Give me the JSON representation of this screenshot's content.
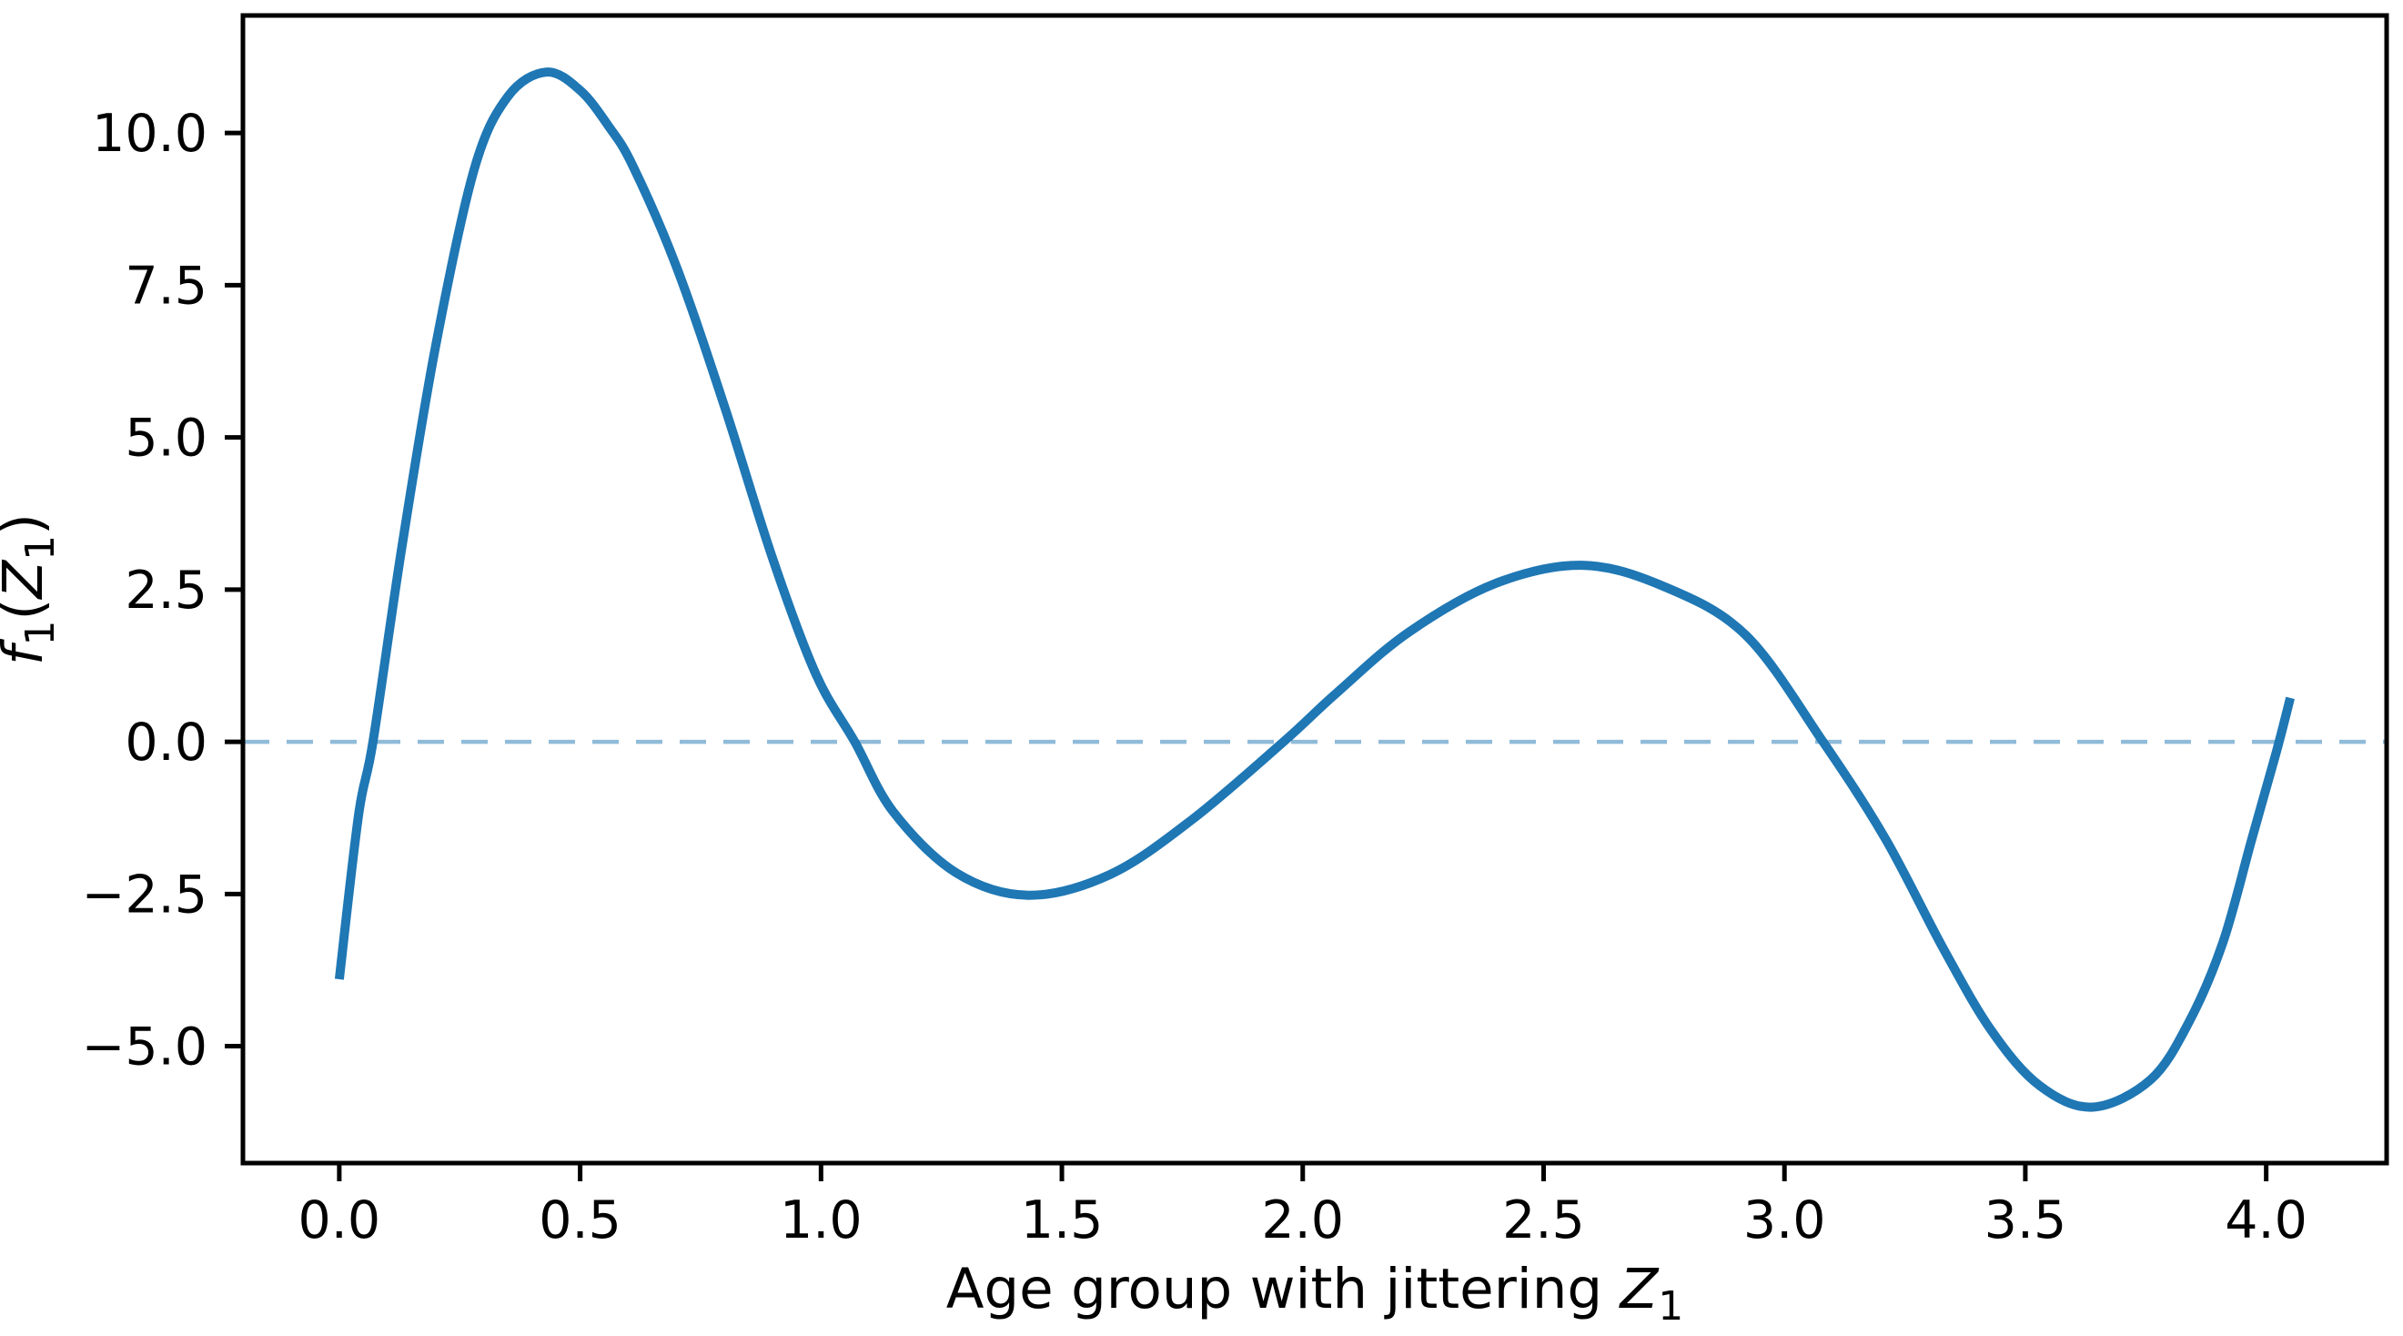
{
  "figure": {
    "background": "#ffffff",
    "text_color": "#000000",
    "spine_color": "#000000"
  },
  "chart_data": {
    "type": "line",
    "title": "",
    "xlabel_plain": "Age group with jittering Z1",
    "xlabel_parts": [
      {
        "t": "Age group with jittering ",
        "style": "normal"
      },
      {
        "t": "Z",
        "style": "italic"
      },
      {
        "t": "1",
        "style": "sub"
      }
    ],
    "ylabel_plain": "f1(Z1)",
    "ylabel_parts": [
      {
        "t": "f",
        "style": "italic"
      },
      {
        "t": "1",
        "style": "sub"
      },
      {
        "t": "(",
        "style": "normal"
      },
      {
        "t": "Z",
        "style": "italic"
      },
      {
        "t": "1",
        "style": "sub"
      },
      {
        "t": ")",
        "style": "normal"
      }
    ],
    "xlim": [
      -0.2,
      4.25
    ],
    "ylim": [
      -6.92,
      11.93
    ],
    "xticks": [
      0.0,
      0.5,
      1.0,
      1.5,
      2.0,
      2.5,
      3.0,
      3.5,
      4.0
    ],
    "xtick_labels": [
      "0.0",
      "0.5",
      "1.0",
      "1.5",
      "2.0",
      "2.5",
      "3.0",
      "3.5",
      "4.0"
    ],
    "yticks": [
      -5.0,
      -2.5,
      0.0,
      2.5,
      5.0,
      7.5,
      10.0
    ],
    "ytick_labels": [
      "−5.0",
      "−2.5",
      "0.0",
      "2.5",
      "5.0",
      "7.5",
      "10.0"
    ],
    "grid": false,
    "legend": null,
    "series": [
      {
        "name": "f1-spline",
        "color": "#1f77b4",
        "linewidth": 10,
        "linestyle": "solid",
        "points": [
          [
            0.0,
            -3.9
          ],
          [
            0.04,
            -1.2
          ],
          [
            0.07,
            0.0
          ],
          [
            0.13,
            3.2
          ],
          [
            0.2,
            6.5
          ],
          [
            0.28,
            9.4
          ],
          [
            0.35,
            10.6
          ],
          [
            0.43,
            11.0
          ],
          [
            0.5,
            10.7
          ],
          [
            0.56,
            10.1
          ],
          [
            0.61,
            9.45
          ],
          [
            0.7,
            7.8
          ],
          [
            0.8,
            5.5
          ],
          [
            0.9,
            3.0
          ],
          [
            0.99,
            1.1
          ],
          [
            1.07,
            0.0
          ],
          [
            1.15,
            -1.15
          ],
          [
            1.28,
            -2.15
          ],
          [
            1.43,
            -2.52
          ],
          [
            1.6,
            -2.18
          ],
          [
            1.77,
            -1.28
          ],
          [
            1.96,
            0.0
          ],
          [
            2.07,
            0.8
          ],
          [
            2.22,
            1.8
          ],
          [
            2.4,
            2.6
          ],
          [
            2.58,
            2.9
          ],
          [
            2.75,
            2.55
          ],
          [
            2.92,
            1.75
          ],
          [
            3.08,
            0.0
          ],
          [
            3.21,
            -1.6
          ],
          [
            3.33,
            -3.4
          ],
          [
            3.43,
            -4.75
          ],
          [
            3.53,
            -5.65
          ],
          [
            3.64,
            -6.0
          ],
          [
            3.76,
            -5.55
          ],
          [
            3.84,
            -4.6
          ],
          [
            3.91,
            -3.3
          ],
          [
            3.97,
            -1.6
          ],
          [
            4.02,
            -0.2
          ],
          [
            4.05,
            0.72
          ]
        ]
      }
    ],
    "reference_line": {
      "name": "zero-reference-line",
      "y": 0,
      "color": "#8fbbd9",
      "linewidth": 4.5,
      "linestyle": "dashed",
      "dash": [
        29,
        19
      ]
    }
  }
}
